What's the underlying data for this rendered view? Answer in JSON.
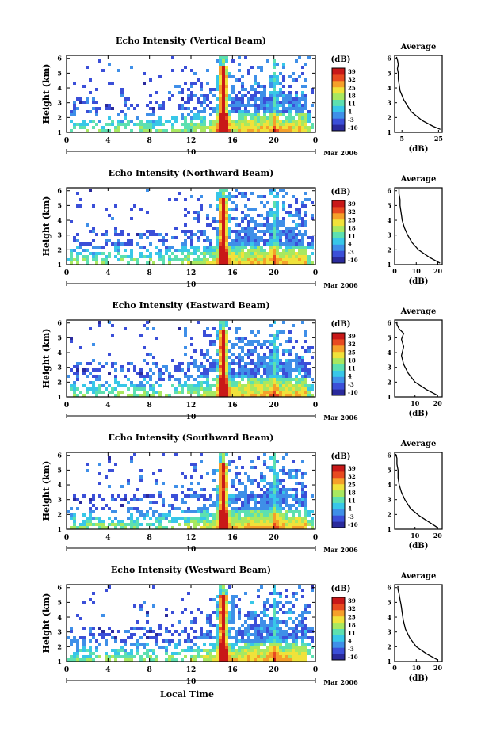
{
  "figure": {
    "xlabel": "Local Time",
    "date_label": "Mar 2006",
    "day_label": "10",
    "ylabel": "Height (km)",
    "colorbar_unit": "(dB)",
    "colorbar_ticks": [
      "39",
      "32",
      "25",
      "18",
      "11",
      "4",
      "-3",
      "-10"
    ],
    "x_ticks": [
      "0",
      "4",
      "8",
      "12",
      "16",
      "20",
      "0"
    ],
    "y_ticks": [
      "1",
      "2",
      "3",
      "4",
      "5",
      "6"
    ],
    "colormap": [
      "#2a2a9c",
      "#3b4fd8",
      "#3f8fe8",
      "#38c7e8",
      "#5de0b0",
      "#a8e860",
      "#f0e23a",
      "#f5a02a",
      "#e84a20",
      "#c81818"
    ]
  },
  "chart_data": [
    {
      "type": "heatmap",
      "title": "Echo Intensity (Vertical Beam)",
      "xlabel": "Local Time",
      "ylabel": "Height (km)",
      "xlim": [
        0,
        24
      ],
      "ylim": [
        1,
        6.2
      ],
      "clim": [
        -10,
        39
      ],
      "profile": {
        "title": "Average",
        "xlabel": "(dB)",
        "x_ticks": [
          "5",
          "25"
        ],
        "xlim": [
          1,
          27
        ],
        "x": [
          26,
          22,
          16,
          10,
          6,
          5,
          4,
          3.5,
          3,
          3,
          2.5,
          3,
          2.5,
          2
        ],
        "y": [
          1.2,
          1.4,
          1.8,
          2.4,
          3.2,
          3.5,
          3.8,
          4.2,
          4.6,
          5.0,
          5.3,
          5.6,
          5.9,
          6.1
        ]
      }
    },
    {
      "type": "heatmap",
      "title": "Echo Intensity (Northward Beam)",
      "xlabel": "Local Time",
      "ylabel": "Height (km)",
      "xlim": [
        0,
        24
      ],
      "ylim": [
        1,
        6.2
      ],
      "clim": [
        -10,
        39
      ],
      "profile": {
        "title": "Average",
        "xlabel": "(dB)",
        "x_ticks": [
          "0",
          "10",
          "20"
        ],
        "xlim": [
          0,
          22
        ],
        "x": [
          21,
          16,
          11,
          8,
          6,
          4.5,
          3.5,
          3,
          2.5,
          2.5,
          2,
          2
        ],
        "y": [
          1.1,
          1.5,
          2.0,
          2.5,
          3.0,
          3.5,
          4.0,
          4.5,
          5.0,
          5.4,
          5.8,
          6.1
        ]
      }
    },
    {
      "type": "heatmap",
      "title": "Echo Intensity (Eastward Beam)",
      "xlabel": "Local Time",
      "ylabel": "Height (km)",
      "xlim": [
        0,
        24
      ],
      "ylim": [
        1,
        6.2
      ],
      "clim": [
        -10,
        39
      ],
      "profile": {
        "title": "Average",
        "xlabel": "(dB)",
        "x_ticks": [
          "10",
          "20"
        ],
        "xlim": [
          1,
          22
        ],
        "x": [
          20,
          15,
          10,
          7,
          5,
          4,
          5,
          4,
          5,
          3,
          2,
          2
        ],
        "y": [
          1.1,
          1.5,
          2.0,
          2.6,
          3.2,
          3.8,
          4.4,
          4.9,
          5.3,
          5.6,
          5.9,
          6.1
        ]
      }
    },
    {
      "type": "heatmap",
      "title": "Echo Intensity (Southward Beam)",
      "xlabel": "Local Time",
      "ylabel": "Height (km)",
      "xlim": [
        0,
        24
      ],
      "ylim": [
        1,
        6.2
      ],
      "clim": [
        -10,
        39
      ],
      "profile": {
        "title": "Average",
        "xlabel": "(dB)",
        "x_ticks": [
          "10",
          "20"
        ],
        "xlim": [
          1,
          22
        ],
        "x": [
          20,
          16,
          12,
          8,
          5.5,
          4,
          3,
          2.5,
          2.5,
          2,
          2,
          1.5
        ],
        "y": [
          1.1,
          1.5,
          1.9,
          2.4,
          3.0,
          3.5,
          4.0,
          4.5,
          5.0,
          5.4,
          5.8,
          6.1
        ]
      }
    },
    {
      "type": "heatmap",
      "title": "Echo Intensity (Westward Beam)",
      "xlabel": "Local Time",
      "ylabel": "Height (km)",
      "xlim": [
        0,
        24
      ],
      "ylim": [
        1,
        6.2
      ],
      "clim": [
        -10,
        39
      ],
      "profile": {
        "title": "Average",
        "xlabel": "(dB)",
        "x_ticks": [
          "0",
          "10",
          "20"
        ],
        "xlim": [
          0,
          22
        ],
        "x": [
          20,
          15,
          10,
          7,
          5,
          4,
          3.5,
          3,
          2.5,
          2,
          1.5,
          1.5
        ],
        "y": [
          1.1,
          1.5,
          2.0,
          2.6,
          3.2,
          3.8,
          4.3,
          4.8,
          5.2,
          5.6,
          5.9,
          6.1
        ]
      }
    }
  ]
}
